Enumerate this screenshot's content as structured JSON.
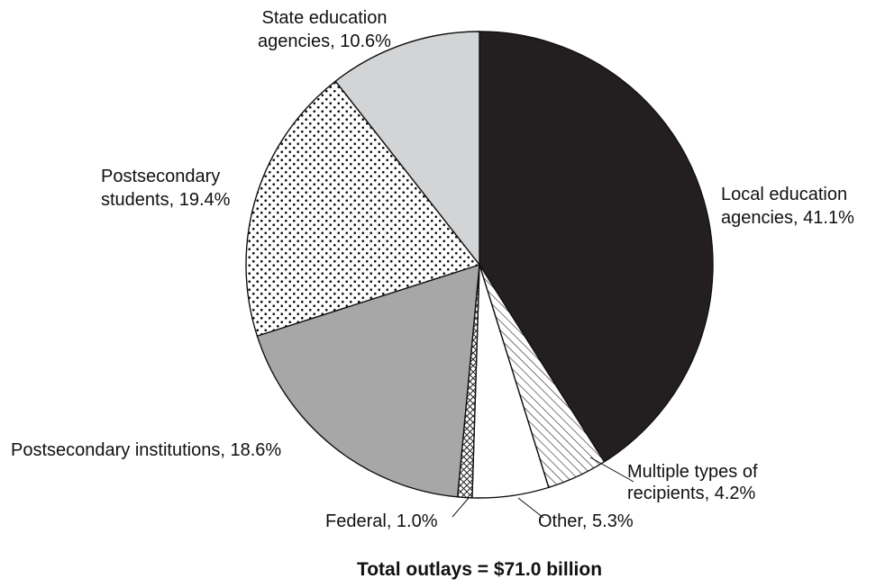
{
  "chart_data": {
    "type": "pie",
    "title": "",
    "caption": "Total outlays = $71.0 billion",
    "slices": [
      {
        "name": "Local education agencies",
        "label": [
          "Local education",
          "agencies, 41.1%"
        ],
        "value": 41.1,
        "fill": "solid",
        "color": "#231f20"
      },
      {
        "name": "Multiple types of recipients",
        "label": [
          "Multiple types of",
          "recipients, 4.2%"
        ],
        "value": 4.2,
        "fill": "hatch",
        "color": "#ffffff"
      },
      {
        "name": "Other",
        "label": [
          "Other, 5.3%"
        ],
        "value": 5.3,
        "fill": "solid",
        "color": "#ffffff"
      },
      {
        "name": "Federal",
        "label": [
          "Federal, 1.0%"
        ],
        "value": 1.0,
        "fill": "crosshatch",
        "color": "#ffffff"
      },
      {
        "name": "Postsecondary institutions",
        "label": [
          "Postsecondary institutions, 18.6%"
        ],
        "value": 18.6,
        "fill": "solid",
        "color": "#a7a7a7"
      },
      {
        "name": "Postsecondary students",
        "label": [
          "Postsecondary",
          "students, 19.4%"
        ],
        "value": 19.4,
        "fill": "dots",
        "color": "#ffffff"
      },
      {
        "name": "State education agencies",
        "label": [
          "State education",
          "agencies, 10.6%"
        ],
        "value": 10.6,
        "fill": "solid",
        "color": "#d3d4d5"
      }
    ]
  }
}
